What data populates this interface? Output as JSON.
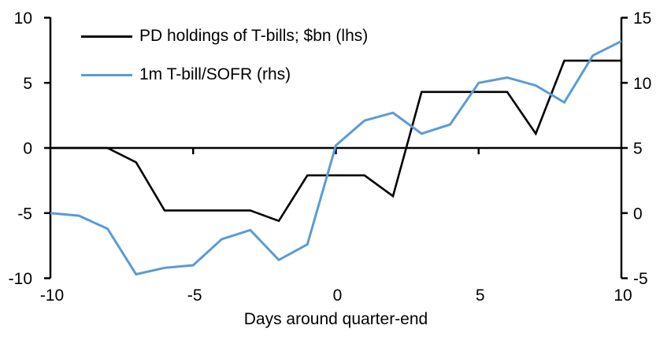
{
  "chart_data": {
    "type": "line",
    "xlabel": "Days around quarter-end",
    "x": [
      -10,
      -9,
      -8,
      -7,
      -6,
      -5,
      -4,
      -3,
      -2,
      -1,
      0,
      1,
      2,
      3,
      4,
      5,
      6,
      7,
      8,
      9,
      10
    ],
    "series": [
      {
        "name": "PD holdings of T-bills; $bn (lhs)",
        "axis": "left",
        "color": "#000000",
        "values": [
          0,
          0,
          0,
          -1.1,
          -4.8,
          -4.8,
          -4.8,
          -4.8,
          -5.6,
          -2.1,
          -2.1,
          -2.1,
          -3.7,
          4.3,
          4.3,
          4.3,
          4.3,
          1.1,
          6.7,
          6.7,
          6.7
        ]
      },
      {
        "name": "1m T-bill/SOFR (rhs)",
        "axis": "right",
        "color": "#5B9BD5",
        "values": [
          0,
          -0.2,
          -1.2,
          -4.7,
          -4.2,
          -4.0,
          -2.0,
          -1.3,
          -3.6,
          -2.4,
          5.2,
          7.1,
          7.7,
          6.1,
          6.8,
          10.0,
          10.4,
          9.8,
          8.5,
          12.1,
          13.2
        ]
      }
    ],
    "left_axis": {
      "range": [
        -10,
        10
      ],
      "ticks": [
        -10,
        -5,
        0,
        5,
        10
      ]
    },
    "right_axis": {
      "range": [
        -5,
        15
      ],
      "ticks": [
        -5,
        0,
        5,
        10,
        15
      ]
    },
    "x_ticks": [
      -10,
      -5,
      0,
      5,
      10
    ],
    "grid": false,
    "legend_position": "top-left-inside",
    "axis_color": "#000000"
  }
}
